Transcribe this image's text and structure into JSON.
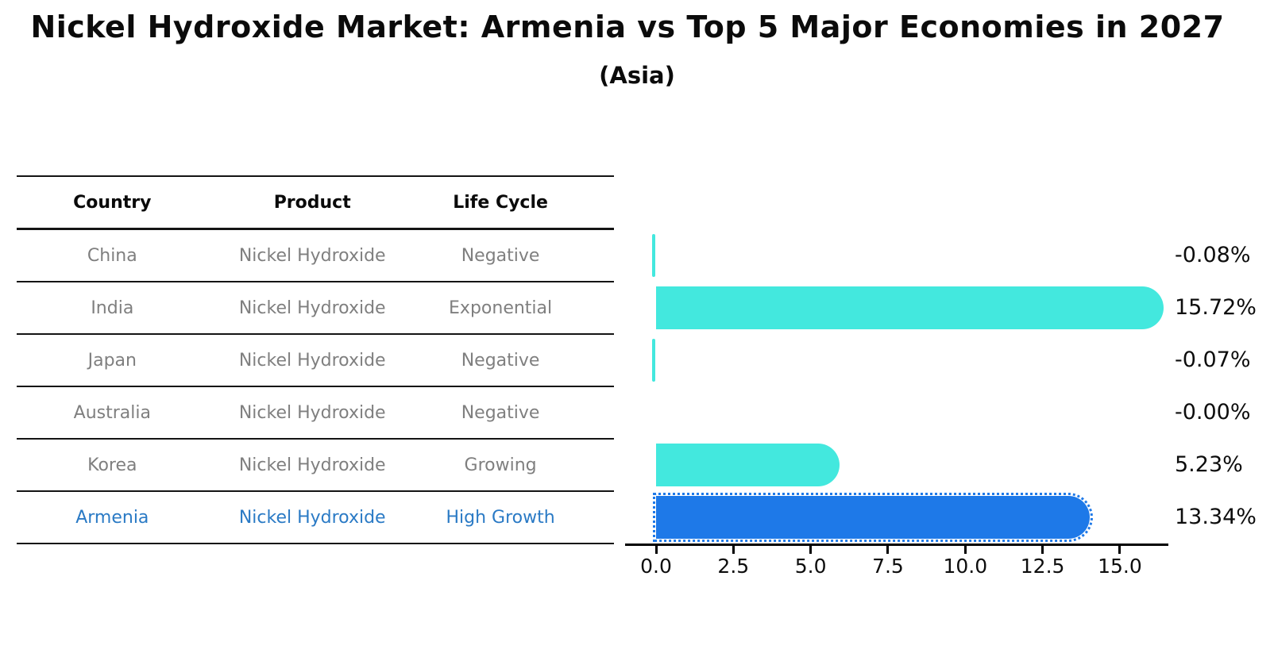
{
  "header": {
    "title": "Nickel Hydroxide Market: Armenia vs Top 5 Major Economies in 2027",
    "subtitle": "(Asia)"
  },
  "table": {
    "columns": [
      "Country",
      "Product",
      "Life Cycle"
    ],
    "rows": [
      {
        "country": "China",
        "product": "Nickel Hydroxide",
        "life_cycle": "Negative",
        "highlight": false
      },
      {
        "country": "India",
        "product": "Nickel Hydroxide",
        "life_cycle": "Exponential",
        "highlight": false
      },
      {
        "country": "Japan",
        "product": "Nickel Hydroxide",
        "life_cycle": "Negative",
        "highlight": false
      },
      {
        "country": "Australia",
        "product": "Nickel Hydroxide",
        "life_cycle": "Negative",
        "highlight": false
      },
      {
        "country": "Korea",
        "product": "Nickel Hydroxide",
        "life_cycle": "Growing",
        "highlight": false
      },
      {
        "country": "Armenia",
        "product": "Nickel Hydroxide",
        "life_cycle": "High Growth",
        "highlight": true
      }
    ]
  },
  "chart_data": {
    "type": "bar",
    "orientation": "horizontal",
    "title": "Nickel Hydroxide Market: Armenia vs Top 5 Major Economies in 2027 (Asia)",
    "categories": [
      "China",
      "India",
      "Japan",
      "Australia",
      "Korea",
      "Armenia"
    ],
    "values": [
      -0.08,
      15.72,
      -0.07,
      -0.0,
      5.23,
      13.34
    ],
    "value_labels": [
      "-0.08%",
      "15.72%",
      "-0.07%",
      "-0.00%",
      "5.23%",
      "13.34%"
    ],
    "highlight_category": "Armenia",
    "xlim": [
      0,
      16.5
    ],
    "x_ticks": [
      0.0,
      2.5,
      5.0,
      7.5,
      10.0,
      12.5,
      15.0
    ],
    "x_tick_labels": [
      "0.0",
      "2.5",
      "5.0",
      "7.5",
      "10.0",
      "12.5",
      "15.0"
    ],
    "grid": false,
    "legend": false,
    "bar_color_default": "#43e8de",
    "bar_color_highlight": "#1e79e8",
    "highlight_text_color": "#2a7ac5"
  }
}
